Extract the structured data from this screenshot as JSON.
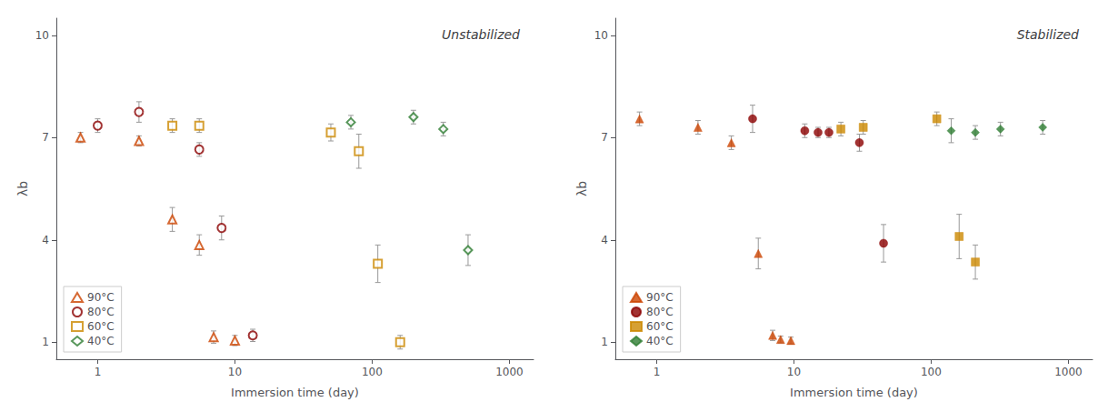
{
  "chart_data": [
    {
      "type": "scatter",
      "title": "Unstabilized",
      "x_label": "Immersion time (day)",
      "y_label": "λb",
      "log": "x",
      "xlim": [
        0.5,
        1500
      ],
      "xticks": [
        1,
        10,
        100,
        1000
      ],
      "ylim": [
        0.5,
        10.5
      ],
      "yticks": [
        1,
        4,
        7,
        10
      ],
      "grid": false,
      "legend": "lower left",
      "series": [
        {
          "name": "90°C",
          "color": "#CC4400",
          "marker": "open_triangle",
          "x": [
            0.75,
            2.0,
            3.5,
            5.5,
            7.0,
            10.0
          ],
          "values": [
            7.0,
            6.9,
            4.6,
            3.85,
            1.15,
            1.05
          ],
          "yerr": [
            0.15,
            0.15,
            0.35,
            0.3,
            0.18,
            0.15
          ]
        },
        {
          "name": "80°C",
          "color": "#8B0000",
          "marker": "open_circle",
          "x": [
            1.0,
            2.0,
            5.5,
            8.0,
            13.5
          ],
          "values": [
            7.35,
            7.75,
            6.65,
            4.35,
            1.2
          ],
          "yerr": [
            0.2,
            0.3,
            0.2,
            0.35,
            0.18
          ]
        },
        {
          "name": "60°C",
          "color": "#CC8800",
          "marker": "open_square",
          "x": [
            3.5,
            5.5,
            50.0,
            80.0,
            110.0,
            160.0
          ],
          "values": [
            7.35,
            7.35,
            7.15,
            6.6,
            3.3,
            1.0
          ],
          "yerr": [
            0.2,
            0.2,
            0.25,
            0.5,
            0.55,
            0.2
          ]
        },
        {
          "name": "40°C",
          "color": "#2E7D32",
          "marker": "open_diamond",
          "x": [
            70.0,
            200.0,
            330.0,
            500.0
          ],
          "values": [
            7.45,
            7.6,
            7.25,
            3.7
          ],
          "yerr": [
            0.2,
            0.2,
            0.2,
            0.45
          ]
        }
      ]
    },
    {
      "type": "scatter",
      "title": "Stabilized",
      "x_label": "Immersion time (day)",
      "y_label": "λb",
      "log": "x",
      "xlim": [
        0.5,
        1500
      ],
      "xticks": [
        1,
        10,
        100,
        1000
      ],
      "ylim": [
        0.5,
        10.5
      ],
      "yticks": [
        1,
        4,
        7,
        10
      ],
      "grid": false,
      "legend": "lower left",
      "series": [
        {
          "name": "90°C",
          "color": "#CC4400",
          "marker": "triangle",
          "x": [
            0.75,
            2.0,
            3.5,
            5.5,
            7.0,
            8.0,
            9.5
          ],
          "values": [
            7.55,
            7.3,
            6.85,
            3.6,
            1.2,
            1.08,
            1.05
          ],
          "yerr": [
            0.2,
            0.2,
            0.2,
            0.45,
            0.15,
            0.1,
            0.1
          ]
        },
        {
          "name": "80°C",
          "color": "#8B0000",
          "marker": "circle",
          "x": [
            5.0,
            12.0,
            15.0,
            18.0,
            30.0,
            45.0
          ],
          "values": [
            7.55,
            7.2,
            7.15,
            7.15,
            6.85,
            3.9
          ],
          "yerr": [
            0.4,
            0.2,
            0.15,
            0.15,
            0.25,
            0.55
          ]
        },
        {
          "name": "60°C",
          "color": "#CC8800",
          "marker": "square",
          "x": [
            22.0,
            32.0,
            110.0,
            160.0,
            210.0
          ],
          "values": [
            7.25,
            7.3,
            7.55,
            4.1,
            3.35
          ],
          "yerr": [
            0.2,
            0.2,
            0.2,
            0.65,
            0.5
          ]
        },
        {
          "name": "40°C",
          "color": "#2E7D32",
          "marker": "diamond",
          "x": [
            140.0,
            210.0,
            320.0,
            650.0
          ],
          "values": [
            7.2,
            7.15,
            7.25,
            7.3
          ],
          "yerr": [
            0.35,
            0.2,
            0.2,
            0.2
          ]
        }
      ]
    }
  ]
}
